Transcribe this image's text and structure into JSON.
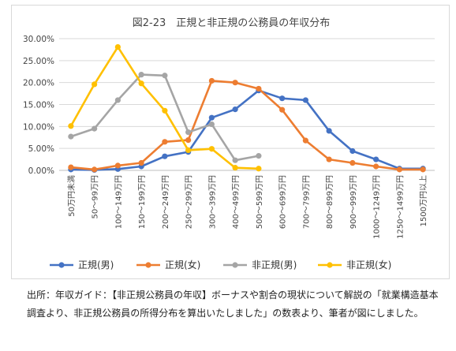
{
  "chart_data": {
    "type": "line",
    "title": "図2-23　正規と非正規の公務員の年収分布",
    "xlabel": "",
    "ylabel": "",
    "ylim": [
      0,
      0.3
    ],
    "yticks": [
      "0.00%",
      "5.00%",
      "10.00%",
      "15.00%",
      "20.00%",
      "25.00%",
      "30.00%"
    ],
    "grid": "horizontal",
    "legend_position": "bottom",
    "categories": [
      "50万円未満",
      "50〜99万円",
      "100〜149万円",
      "150〜199万円",
      "200〜249万円",
      "250〜299万円",
      "300〜399万円",
      "400〜499万円",
      "500〜599万円",
      "600〜699万円",
      "700〜799万円",
      "800〜899万円",
      "900〜999万円",
      "1000〜1249万円",
      "1250〜1499万円",
      "1500万円以上"
    ],
    "series": [
      {
        "name": "正規(男)",
        "color": "#4472C4",
        "values": [
          0.002,
          0.001,
          0.003,
          0.009,
          0.032,
          0.042,
          0.12,
          0.139,
          0.182,
          0.164,
          0.16,
          0.09,
          0.044,
          0.025,
          0.004,
          0.004
        ]
      },
      {
        "name": "正規(女)",
        "color": "#ED7D31",
        "values": [
          0.007,
          0.002,
          0.011,
          0.017,
          0.065,
          0.069,
          0.204,
          0.2,
          0.186,
          0.138,
          0.068,
          0.025,
          0.017,
          0.009,
          0.002,
          0.002
        ]
      },
      {
        "name": "非正規(男)",
        "color": "#A5A5A5",
        "values": [
          0.077,
          0.095,
          0.16,
          0.218,
          0.216,
          0.087,
          0.105,
          0.023,
          0.033,
          null,
          null,
          null,
          null,
          null,
          null,
          null
        ]
      },
      {
        "name": "非正規(女)",
        "color": "#FFC000",
        "values": [
          0.101,
          0.196,
          0.281,
          0.198,
          0.136,
          0.046,
          0.049,
          0.006,
          0.004,
          null,
          null,
          null,
          null,
          null,
          null,
          null
        ]
      }
    ]
  },
  "caption": "出所：年収ガイド：【非正規公務員の年収】ボーナスや割合の現状について解説の「就業構造基本調査より、非正規公務員の所得分布を算出いたしました」の数表より、筆者が図にしました。"
}
